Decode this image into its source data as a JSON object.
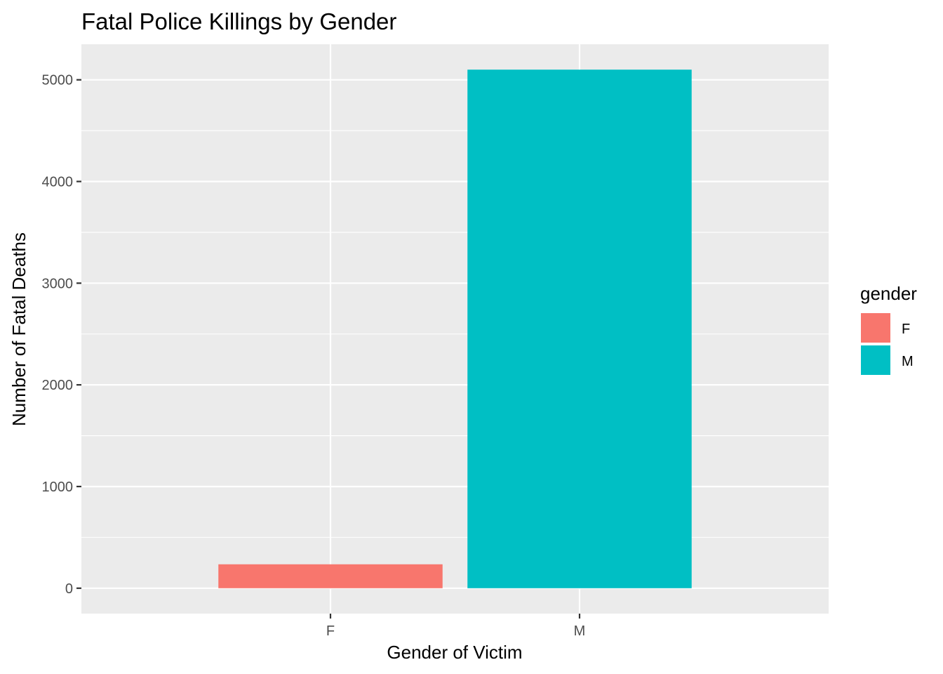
{
  "chart_data": {
    "type": "bar",
    "title": "Fatal Police Killings by Gender",
    "xlabel": "Gender of Victim",
    "ylabel": "Number of Fatal Deaths",
    "categories": [
      "F",
      "M"
    ],
    "values": [
      235,
      5100
    ],
    "ylim": [
      -250,
      5350
    ],
    "yticks": [
      0,
      1000,
      2000,
      3000,
      4000,
      5000
    ],
    "ytick_labels": [
      "0",
      "1000",
      "2000",
      "3000",
      "4000",
      "5000"
    ],
    "grid": true,
    "legend": {
      "title": "gender",
      "position": "right",
      "entries": [
        {
          "label": "F",
          "color": "#F8766D"
        },
        {
          "label": "M",
          "color": "#00BFC4"
        }
      ]
    },
    "colors": {
      "F": "#F8766D",
      "M": "#00BFC4",
      "panel": "#EBEBEB",
      "grid": "#FFFFFF",
      "tick": "#333333"
    }
  }
}
